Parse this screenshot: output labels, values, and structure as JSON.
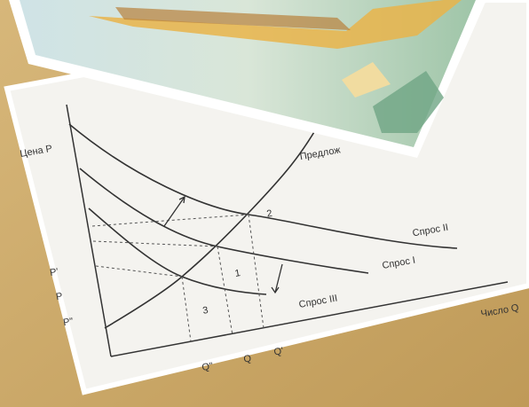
{
  "diagram": {
    "y_axis_label": "Цена P",
    "x_axis_label": "Число Q",
    "curves": {
      "supply": "Предлож",
      "demand_1": "Спрос I",
      "demand_2": "Спрос II",
      "demand_3": "Спрос III"
    },
    "price_labels": [
      "P'",
      "P",
      "P\""
    ],
    "quantity_labels": [
      "Q\"",
      "Q",
      "Q'"
    ],
    "points": [
      "1",
      "2",
      "3"
    ]
  }
}
